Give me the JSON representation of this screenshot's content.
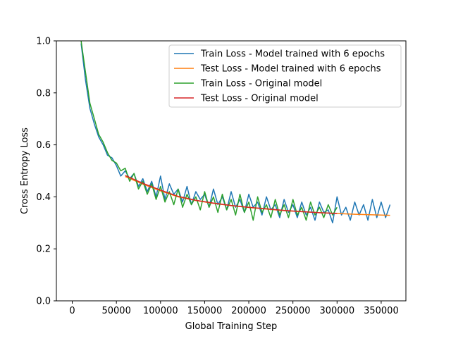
{
  "colors": {
    "train_6ep": "#1f77b4",
    "test_6ep": "#ff7f0e",
    "train_orig": "#2ca02c",
    "test_orig": "#d62728"
  },
  "chart_data": {
    "type": "line",
    "title": "",
    "xlabel": "Global Training Step",
    "ylabel": "Cross Entropy Loss",
    "xlim": [
      -18000,
      378000
    ],
    "ylim": [
      0.0,
      1.0
    ],
    "xticks": [
      0,
      50000,
      100000,
      150000,
      200000,
      250000,
      300000,
      350000
    ],
    "xtick_labels": [
      "0",
      "50000",
      "100000",
      "150000",
      "200000",
      "250000",
      "300000",
      "350000"
    ],
    "yticks": [
      0.0,
      0.2,
      0.4,
      0.6,
      0.8,
      1.0
    ],
    "ytick_labels": [
      "0.0",
      "0.2",
      "0.4",
      "0.6",
      "0.8",
      "1.0"
    ],
    "grid": false,
    "legend_position": "top-right",
    "series": [
      {
        "name": "Train Loss - Model trained with 6 epochs",
        "color": "#1f77b4",
        "x": [
          10000,
          15000,
          20000,
          25000,
          30000,
          35000,
          40000,
          45000,
          50000,
          55000,
          60000,
          65000,
          70000,
          75000,
          80000,
          85000,
          90000,
          95000,
          100000,
          105000,
          110000,
          115000,
          120000,
          125000,
          130000,
          135000,
          140000,
          145000,
          150000,
          155000,
          160000,
          165000,
          170000,
          175000,
          180000,
          185000,
          190000,
          195000,
          200000,
          205000,
          210000,
          215000,
          220000,
          225000,
          230000,
          235000,
          240000,
          245000,
          250000,
          255000,
          260000,
          265000,
          270000,
          275000,
          280000,
          285000,
          290000,
          295000,
          300000,
          305000,
          310000,
          315000,
          320000,
          325000,
          330000,
          335000,
          340000,
          345000,
          350000,
          355000,
          360000
        ],
        "y": [
          0.99,
          0.85,
          0.74,
          0.68,
          0.63,
          0.6,
          0.56,
          0.55,
          0.52,
          0.48,
          0.5,
          0.47,
          0.49,
          0.44,
          0.47,
          0.42,
          0.46,
          0.4,
          0.48,
          0.39,
          0.45,
          0.41,
          0.43,
          0.38,
          0.44,
          0.37,
          0.42,
          0.39,
          0.41,
          0.36,
          0.43,
          0.37,
          0.4,
          0.35,
          0.42,
          0.36,
          0.39,
          0.34,
          0.41,
          0.36,
          0.38,
          0.33,
          0.4,
          0.35,
          0.37,
          0.32,
          0.39,
          0.34,
          0.37,
          0.32,
          0.38,
          0.33,
          0.36,
          0.31,
          0.38,
          0.34,
          0.35,
          0.3,
          0.4,
          0.33,
          0.36,
          0.31,
          0.38,
          0.33,
          0.37,
          0.31,
          0.39,
          0.32,
          0.38,
          0.32,
          0.37
        ]
      },
      {
        "name": "Test Loss - Model trained with 6 epochs",
        "color": "#ff7f0e",
        "x": [
          60000,
          80000,
          100000,
          120000,
          140000,
          160000,
          180000,
          200000,
          220000,
          240000,
          260000,
          280000,
          300000,
          320000,
          340000,
          360000
        ],
        "y": [
          0.478,
          0.449,
          0.423,
          0.4,
          0.386,
          0.375,
          0.366,
          0.359,
          0.353,
          0.347,
          0.343,
          0.339,
          0.336,
          0.333,
          0.331,
          0.329
        ]
      },
      {
        "name": "Train Loss - Original model",
        "color": "#2ca02c",
        "x": [
          10000,
          15000,
          20000,
          25000,
          30000,
          35000,
          40000,
          45000,
          50000,
          55000,
          60000,
          65000,
          70000,
          75000,
          80000,
          85000,
          90000,
          95000,
          100000,
          105000,
          110000,
          115000,
          120000,
          125000,
          130000,
          135000,
          140000,
          145000,
          150000,
          155000,
          160000,
          165000,
          170000,
          175000,
          180000,
          185000,
          190000,
          195000,
          200000,
          205000,
          210000,
          215000,
          220000,
          225000,
          230000,
          235000,
          240000,
          245000,
          250000,
          255000,
          260000,
          265000,
          270000,
          275000,
          280000,
          285000,
          290000,
          295000,
          300000
        ],
        "y": [
          1.0,
          0.88,
          0.76,
          0.7,
          0.64,
          0.61,
          0.57,
          0.54,
          0.53,
          0.5,
          0.51,
          0.46,
          0.49,
          0.43,
          0.46,
          0.41,
          0.45,
          0.39,
          0.44,
          0.38,
          0.42,
          0.37,
          0.43,
          0.36,
          0.41,
          0.37,
          0.4,
          0.35,
          0.42,
          0.36,
          0.4,
          0.34,
          0.41,
          0.35,
          0.39,
          0.33,
          0.41,
          0.34,
          0.38,
          0.31,
          0.4,
          0.34,
          0.37,
          0.32,
          0.39,
          0.33,
          0.37,
          0.32,
          0.39,
          0.33,
          0.36,
          0.31,
          0.38,
          0.33,
          0.36,
          0.32,
          0.37,
          0.33,
          0.36
        ]
      },
      {
        "name": "Test Loss - Original model",
        "color": "#d62728",
        "x": [
          60000,
          80000,
          100000,
          120000,
          140000,
          160000,
          180000,
          200000,
          220000,
          240000,
          260000,
          280000,
          300000
        ],
        "y": [
          0.482,
          0.452,
          0.426,
          0.402,
          0.387,
          0.376,
          0.367,
          0.36,
          0.354,
          0.348,
          0.343,
          0.339,
          0.336
        ]
      }
    ]
  }
}
